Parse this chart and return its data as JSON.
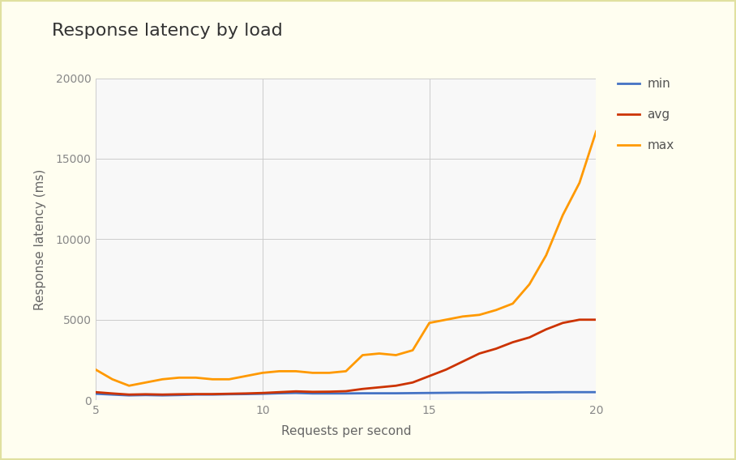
{
  "title": "Response latency by load",
  "xlabel": "Requests per second",
  "ylabel": "Response latency (ms)",
  "background_color": "#fffef0",
  "plot_bg_color": "#f8f8f8",
  "border_color": "#e0e0a0",
  "grid_color": "#cccccc",
  "xlim": [
    5,
    20
  ],
  "ylim": [
    0,
    20000
  ],
  "yticks": [
    0,
    5000,
    10000,
    15000,
    20000
  ],
  "ytick_labels": [
    "0",
    "5000",
    "10000",
    "15000",
    "20000"
  ],
  "xticks": [
    5,
    10,
    15,
    20
  ],
  "series": {
    "min": {
      "color": "#4472c4",
      "x": [
        5,
        5.5,
        6,
        6.5,
        7,
        7.5,
        8,
        8.5,
        9,
        9.5,
        10,
        10.5,
        11,
        11.5,
        12,
        12.5,
        13,
        13.5,
        14,
        14.5,
        15,
        15.5,
        16,
        16.5,
        17,
        17.5,
        18,
        18.5,
        19,
        19.5,
        20
      ],
      "y": [
        400,
        350,
        300,
        320,
        300,
        320,
        350,
        350,
        370,
        380,
        400,
        430,
        450,
        420,
        420,
        420,
        430,
        430,
        430,
        440,
        450,
        460,
        470,
        470,
        480,
        480,
        490,
        490,
        500,
        500,
        500
      ]
    },
    "avg": {
      "color": "#cc3300",
      "x": [
        5,
        5.5,
        6,
        6.5,
        7,
        7.5,
        8,
        8.5,
        9,
        9.5,
        10,
        10.5,
        11,
        11.5,
        12,
        12.5,
        13,
        13.5,
        14,
        14.5,
        15,
        15.5,
        16,
        16.5,
        17,
        17.5,
        18,
        18.5,
        19,
        19.5,
        20
      ],
      "y": [
        500,
        420,
        350,
        370,
        350,
        370,
        380,
        380,
        400,
        420,
        450,
        500,
        550,
        520,
        530,
        560,
        700,
        800,
        900,
        1100,
        1500,
        1900,
        2400,
        2900,
        3200,
        3600,
        3900,
        4400,
        4800,
        5000,
        5000
      ]
    },
    "max": {
      "color": "#ff9900",
      "x": [
        5,
        5.5,
        6,
        6.5,
        7,
        7.5,
        8,
        8.5,
        9,
        9.5,
        10,
        10.5,
        11,
        11.5,
        12,
        12.5,
        13,
        13.5,
        14,
        14.5,
        15,
        15.5,
        16,
        16.5,
        17,
        17.5,
        18,
        18.5,
        19,
        19.5,
        20
      ],
      "y": [
        1900,
        1300,
        900,
        1100,
        1300,
        1400,
        1400,
        1300,
        1300,
        1500,
        1700,
        1800,
        1800,
        1700,
        1700,
        1800,
        2800,
        2900,
        2800,
        3100,
        4800,
        5000,
        5200,
        5300,
        5600,
        6000,
        7200,
        9000,
        11500,
        13500,
        16700
      ]
    }
  },
  "legend_labels": [
    "min",
    "avg",
    "max"
  ],
  "title_fontsize": 16,
  "label_fontsize": 11,
  "tick_fontsize": 10,
  "legend_fontsize": 11,
  "line_width": 2.0
}
